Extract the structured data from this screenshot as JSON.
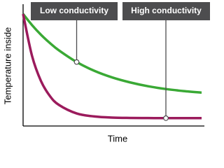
{
  "chart_data": {
    "type": "line",
    "x_label": "Time",
    "y_label": "Temperature inside",
    "x": [
      0,
      0.5,
      1,
      1.5,
      2,
      3,
      4,
      5,
      6,
      7,
      8,
      9,
      10
    ],
    "xlim": [
      0,
      10
    ],
    "ylim": [
      0,
      100
    ],
    "series": [
      {
        "name": "Low conductivity",
        "color": "#3aa935",
        "values": [
          100,
          90.1,
          81.5,
          74.1,
          67.6,
          57.1,
          49.2,
          43.3,
          38.9,
          35.5,
          33.0,
          31.2,
          29.8
        ]
      },
      {
        "name": "High conductivity",
        "color": "#9b1b5c",
        "values": [
          100,
          62.6,
          40.2,
          26.8,
          18.9,
          11.2,
          8.5,
          7.5,
          7.2,
          7.1,
          7.0,
          7.0,
          7.0
        ]
      }
    ],
    "annotations": [
      {
        "text": "Low conductivity",
        "x": 3
      },
      {
        "text": "High conductivity",
        "x": 8
      }
    ]
  }
}
